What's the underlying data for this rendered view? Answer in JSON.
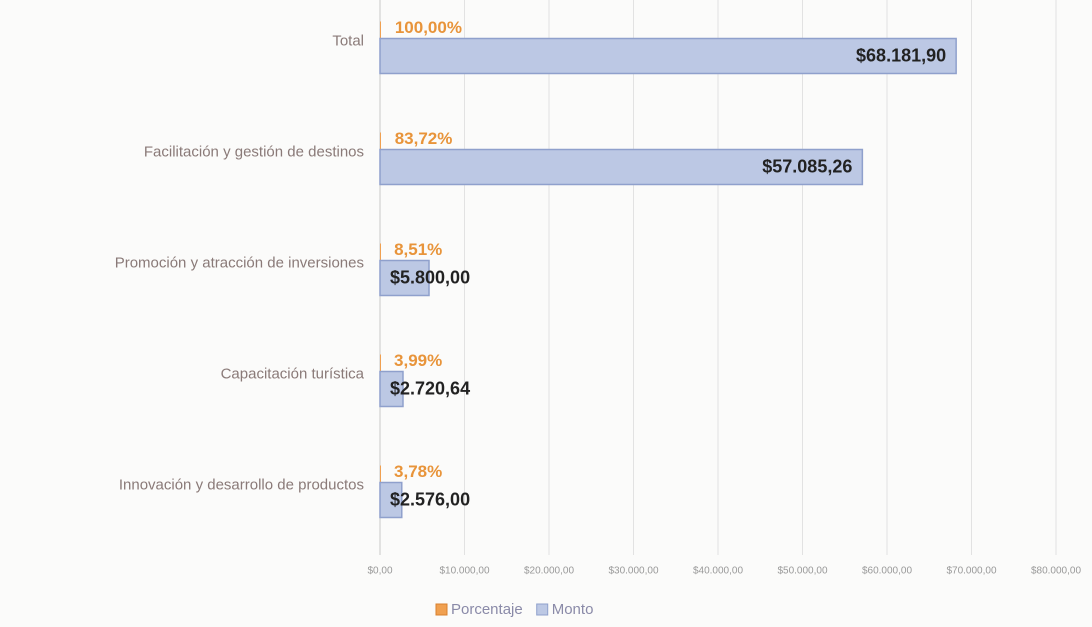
{
  "chart_data": {
    "type": "bar",
    "orientation": "horizontal",
    "categories": [
      "Total",
      "Facilitación y gestión de destinos",
      "Promoción y atracción de inversiones",
      "Capacitación turística",
      "Innovación y desarrollo de productos"
    ],
    "series": [
      {
        "name": "Porcentaje",
        "color": "#f0a050",
        "values": [
          100,
          83.72,
          8.51,
          3.99,
          3.78
        ],
        "value_labels": [
          "100,00%",
          "83,72%",
          "8,51%",
          "3,99%",
          "3,78%"
        ]
      },
      {
        "name": "Monto",
        "color": "#bcc8e4",
        "values": [
          68181.9,
          57085.26,
          5800,
          2720.64,
          2576
        ],
        "value_labels": [
          "$68.181,90",
          "$57.085,26",
          "$5.800,00",
          "$2.720,64",
          "$2.576,00"
        ]
      }
    ],
    "xlim": [
      0,
      80000
    ],
    "xticks": [
      {
        "value": 0,
        "label": "$0,00"
      },
      {
        "value": 10000,
        "label": "$10.000,00"
      },
      {
        "value": 20000,
        "label": "$20.000,00"
      },
      {
        "value": 30000,
        "label": "$30.000,00"
      },
      {
        "value": 40000,
        "label": "$40.000,00"
      },
      {
        "value": 50000,
        "label": "$50.000,00"
      },
      {
        "value": 60000,
        "label": "$60.000,00"
      },
      {
        "value": 70000,
        "label": "$70.000,00"
      },
      {
        "value": 80000,
        "label": "$80.000,00"
      }
    ],
    "grid": true,
    "legend": "bottom"
  }
}
